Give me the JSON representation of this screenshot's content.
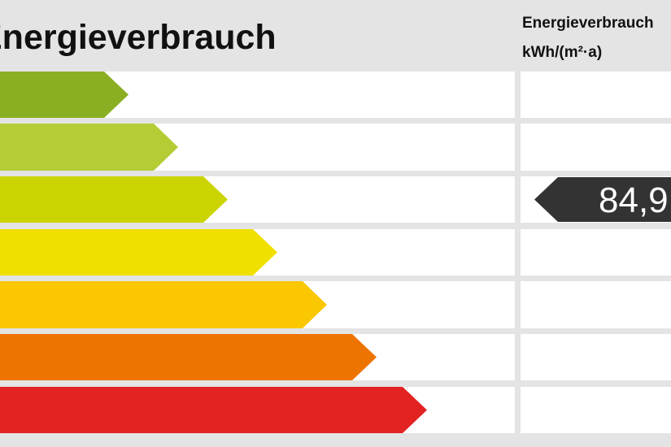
{
  "header": {
    "title": "Energieverbrauch",
    "column_title": "Energieverbrauch",
    "unit": "kWh/(m²·a)"
  },
  "indicator": {
    "value": "84,9"
  }
}
